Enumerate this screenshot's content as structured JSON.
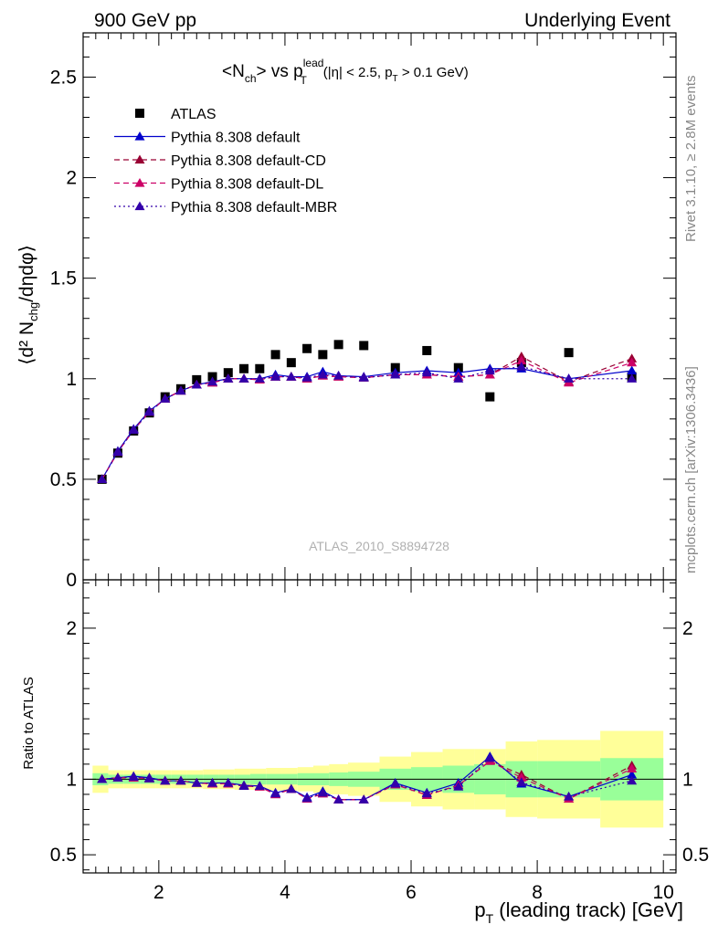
{
  "header": {
    "left": "900 GeV pp",
    "right": "Underlying Event"
  },
  "plot_title": {
    "main": "<N",
    "main_sub": "ch",
    "main_mid": "> vs p",
    "main_sup": "lead",
    "main_sub2": "T",
    "cuts_a": "(|η| < 2.5, p",
    "cuts_sub": "T",
    "cuts_b": " > 0.1 GeV)"
  },
  "side_labels": {
    "top": "Rivet 3.1.10, ≥ 2.8M events",
    "bottom": "mcplots.cern.ch [arXiv:1306.3436]"
  },
  "watermark": "ATLAS_2010_S8894728",
  "axes": {
    "ylabel_main": "⟨d² N",
    "ylabel_main_sub": "chg",
    "ylabel_main_tail": "/dηdφ⟩",
    "ylabel_ratio": "Ratio to ATLAS",
    "xlabel": "p",
    "xlabel_sub": "T",
    "xlabel_tail": " (leading track) [GeV]"
  },
  "colors": {
    "data": "#000000",
    "default": "#0000cc",
    "cd": "#990033",
    "dl": "#cc0066",
    "mbr": "#3300aa",
    "band_inner": "#99ff99",
    "band_outer": "#ffff99"
  },
  "chart_data": [
    {
      "type": "scatter",
      "panel": "main",
      "xlim": [
        0.8,
        10.2
      ],
      "ylim": [
        0,
        2.72
      ],
      "x_ticks": [
        2,
        4,
        6,
        8,
        10
      ],
      "y_ticks": [
        0,
        0.5,
        1,
        1.5,
        2,
        2.5
      ],
      "y_tick_labels": [
        "0",
        "0.5",
        "1",
        "1.5",
        "2",
        "2.5"
      ],
      "legend_position": "top-left",
      "x": [
        1.1,
        1.35,
        1.6,
        1.85,
        2.1,
        2.35,
        2.6,
        2.85,
        3.1,
        3.35,
        3.6,
        3.85,
        4.1,
        4.35,
        4.6,
        4.85,
        5.25,
        5.75,
        6.25,
        6.75,
        7.25,
        7.75,
        8.5,
        9.5
      ],
      "series": [
        {
          "name": "ATLAS",
          "key": "data",
          "style": "square",
          "values": [
            0.5,
            0.63,
            0.74,
            0.83,
            0.91,
            0.95,
            0.995,
            1.01,
            1.03,
            1.05,
            1.05,
            1.12,
            1.08,
            1.15,
            1.12,
            1.17,
            1.165,
            1.055,
            1.14,
            1.055,
            0.91,
            1.08,
            1.13,
            1.01
          ]
        },
        {
          "name": "Pythia 8.308 default",
          "key": "default",
          "style": "solid",
          "values": [
            0.5,
            0.64,
            0.75,
            0.84,
            0.9,
            0.94,
            0.97,
            0.985,
            1.0,
            1.0,
            1.0,
            1.02,
            1.01,
            1.01,
            1.035,
            1.015,
            1.01,
            1.03,
            1.04,
            1.03,
            1.05,
            1.05,
            1.0,
            1.04
          ]
        },
        {
          "name": "Pythia 8.308 default-CD",
          "key": "cd",
          "style": "dashed",
          "values": [
            0.5,
            0.635,
            0.745,
            0.835,
            0.9,
            0.94,
            0.97,
            0.98,
            1.0,
            1.0,
            0.995,
            1.01,
            1.01,
            1.0,
            1.015,
            1.01,
            1.005,
            1.02,
            1.02,
            1.01,
            1.02,
            1.11,
            0.985,
            1.1
          ]
        },
        {
          "name": "Pythia 8.308 default-DL",
          "key": "dl",
          "style": "dashed",
          "values": [
            0.5,
            0.635,
            0.745,
            0.835,
            0.9,
            0.94,
            0.97,
            0.98,
            1.0,
            1.0,
            0.995,
            1.01,
            1.01,
            1.0,
            1.015,
            1.01,
            1.005,
            1.02,
            1.02,
            1.01,
            1.02,
            1.09,
            0.98,
            1.08
          ]
        },
        {
          "name": "Pythia 8.308 default-MBR",
          "key": "mbr",
          "style": "dotted",
          "values": [
            0.5,
            0.635,
            0.745,
            0.835,
            0.9,
            0.94,
            0.97,
            0.985,
            1.0,
            1.0,
            1.0,
            1.01,
            1.01,
            1.005,
            1.02,
            1.015,
            1.005,
            1.02,
            1.03,
            1.0,
            1.04,
            1.06,
            1.0,
            1.0
          ]
        }
      ]
    },
    {
      "type": "scatter",
      "panel": "ratio",
      "xlim": [
        0.8,
        10.2
      ],
      "ylim": [
        0.38,
        2.32
      ],
      "x_ticks": [
        2,
        4,
        6,
        8,
        10
      ],
      "x_tick_labels": [
        "2",
        "4",
        "6",
        "8",
        "10"
      ],
      "y_ticks": [
        0.5,
        1,
        2
      ],
      "y_tick_labels": [
        "0.5",
        "1",
        "2"
      ],
      "band_edges": [
        0.95,
        1.2,
        1.45,
        1.7,
        1.95,
        2.2,
        2.45,
        2.7,
        2.95,
        3.2,
        3.45,
        3.7,
        3.95,
        4.2,
        4.45,
        4.7,
        5.0,
        5.5,
        6.0,
        6.5,
        7.0,
        7.5,
        8.0,
        9.0,
        10.0
      ],
      "band_inner": [
        0.04,
        0.03,
        0.03,
        0.03,
        0.03,
        0.03,
        0.03,
        0.03,
        0.03,
        0.03,
        0.035,
        0.035,
        0.035,
        0.04,
        0.04,
        0.045,
        0.05,
        0.07,
        0.08,
        0.09,
        0.1,
        0.12,
        0.12,
        0.14
      ],
      "band_outer": [
        0.09,
        0.06,
        0.06,
        0.06,
        0.06,
        0.06,
        0.06,
        0.065,
        0.065,
        0.07,
        0.07,
        0.075,
        0.075,
        0.08,
        0.09,
        0.1,
        0.11,
        0.15,
        0.18,
        0.2,
        0.2,
        0.25,
        0.26,
        0.32
      ],
      "x": [
        1.1,
        1.35,
        1.6,
        1.85,
        2.1,
        2.35,
        2.6,
        2.85,
        3.1,
        3.35,
        3.6,
        3.85,
        4.1,
        4.35,
        4.6,
        4.85,
        5.25,
        5.75,
        6.25,
        6.75,
        7.25,
        7.75,
        8.5,
        9.5
      ],
      "series": [
        {
          "name": "Pythia 8.308 default",
          "key": "default",
          "style": "solid",
          "values": [
            1.0,
            1.01,
            1.02,
            1.01,
            0.99,
            0.99,
            0.975,
            0.975,
            0.975,
            0.96,
            0.955,
            0.91,
            0.935,
            0.88,
            0.92,
            0.865,
            0.865,
            0.975,
            0.91,
            0.975,
            1.15,
            0.97,
            0.885,
            1.03
          ]
        },
        {
          "name": "Pythia 8.308 default-CD",
          "key": "cd",
          "style": "dashed",
          "values": [
            1.0,
            1.01,
            1.01,
            1.005,
            0.99,
            0.99,
            0.975,
            0.97,
            0.97,
            0.955,
            0.95,
            0.9,
            0.935,
            0.87,
            0.905,
            0.865,
            0.865,
            0.965,
            0.895,
            0.96,
            1.12,
            1.03,
            0.87,
            1.09
          ]
        },
        {
          "name": "Pythia 8.308 default-DL",
          "key": "dl",
          "style": "dashed",
          "values": [
            1.0,
            1.01,
            1.01,
            1.005,
            0.99,
            0.99,
            0.975,
            0.97,
            0.97,
            0.955,
            0.95,
            0.9,
            0.935,
            0.87,
            0.905,
            0.865,
            0.865,
            0.965,
            0.895,
            0.96,
            1.12,
            1.01,
            0.87,
            1.07
          ]
        },
        {
          "name": "Pythia 8.308 default-MBR",
          "key": "mbr",
          "style": "dotted",
          "values": [
            1.0,
            1.01,
            1.015,
            1.005,
            0.99,
            0.99,
            0.975,
            0.975,
            0.975,
            0.955,
            0.955,
            0.905,
            0.935,
            0.875,
            0.91,
            0.865,
            0.865,
            0.97,
            0.905,
            0.95,
            1.14,
            0.98,
            0.885,
            0.99
          ]
        }
      ]
    }
  ]
}
